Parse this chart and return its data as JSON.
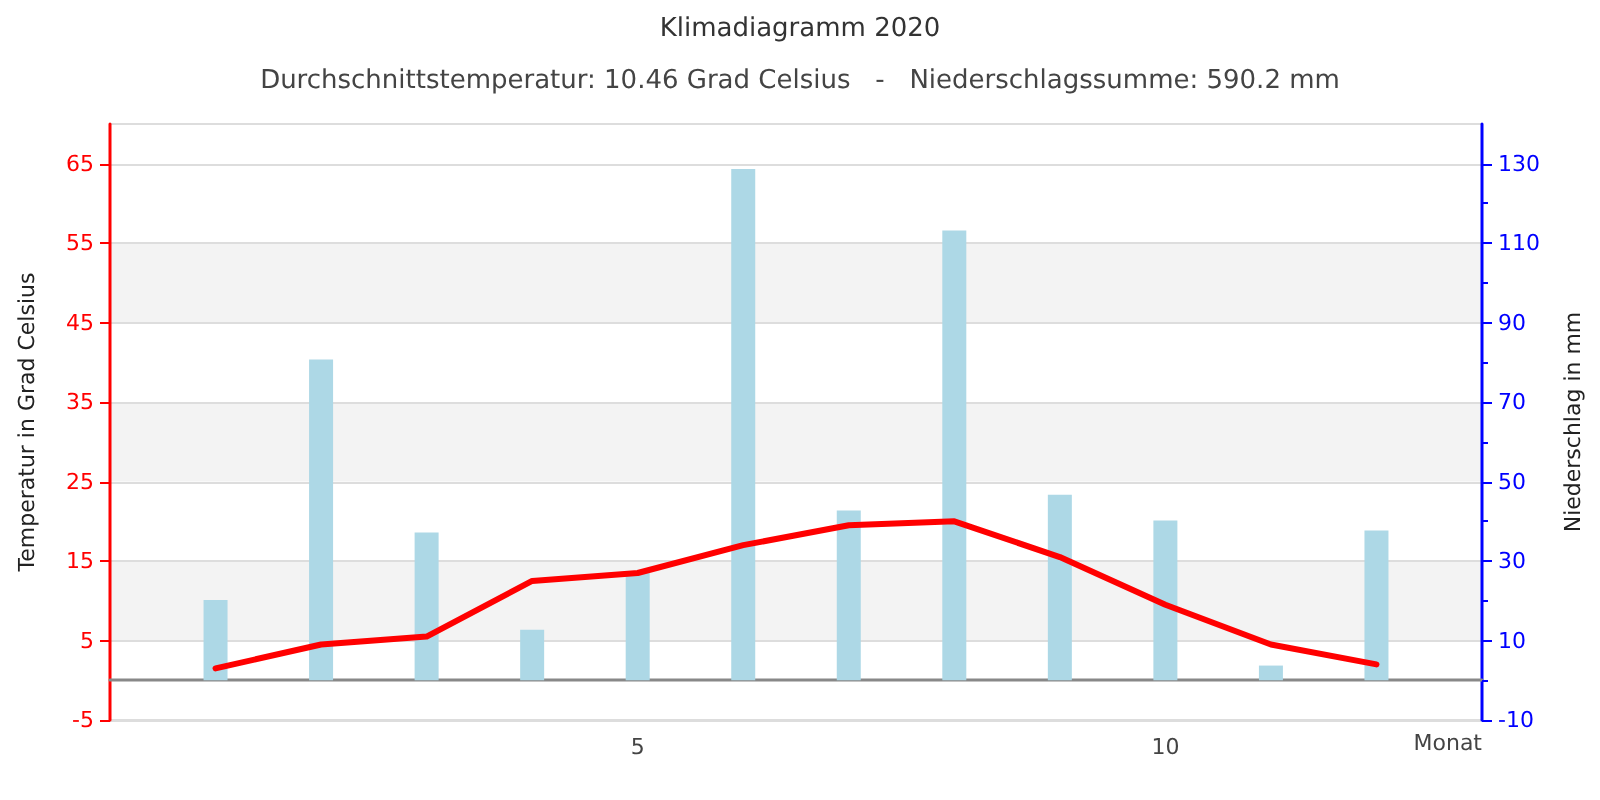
{
  "chart_data": {
    "type": "bar",
    "title": "Klimadiagramm 2020",
    "subtitle": "Durchschnittstemperatur: 10.46 Grad Celsius   -   Niederschlagssumme: 590.2 mm",
    "xlabel": "Monat",
    "ylabel": "Temperatur in Grad Celsius",
    "y2label": "Niederschlag in mm",
    "x": [
      1,
      2,
      3,
      4,
      5,
      6,
      7,
      8,
      9,
      10,
      11,
      12
    ],
    "xlim": [
      0,
      13
    ],
    "xticks": [
      5,
      10
    ],
    "ylim": [
      -5,
      70
    ],
    "yticks": [
      -5,
      5,
      15,
      25,
      35,
      45,
      55,
      65
    ],
    "y2lim": [
      -10,
      140
    ],
    "y2ticks": [
      -10,
      10,
      30,
      50,
      70,
      90,
      110,
      130
    ],
    "series": [
      {
        "axis": "y2",
        "color": "#add8e6",
        "values": [
          20.2,
          80.7,
          37.2,
          12.7,
          27.2,
          128.7,
          42.7,
          113.2,
          46.7,
          40.2,
          3.7,
          37.7
        ]
      },
      {
        "type": "line",
        "color": "#ff0000",
        "values": [
          1.5,
          4.5,
          5.5,
          12.5,
          13.5,
          17,
          19.5,
          20,
          15.5,
          9.5,
          4.5,
          2
        ]
      }
    ],
    "grid": "y",
    "marker": "none",
    "line_style": "solid"
  }
}
